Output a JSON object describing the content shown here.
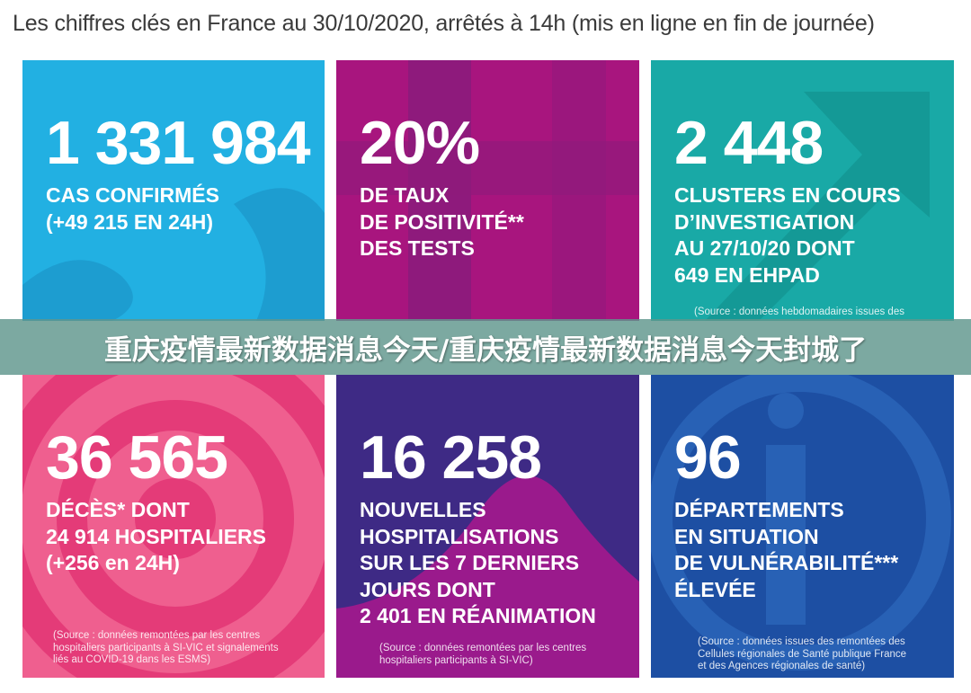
{
  "header": {
    "title": "Les chiffres clés en France au 30/10/2020, arrêtés à 14h (mis en ligne en fin de journée)"
  },
  "tiles": [
    {
      "big": "1 331 984",
      "lines": [
        "CAS CONFIRMÉS",
        "(+49 215 EN 24H)"
      ],
      "source": [],
      "color": "#22b0e2"
    },
    {
      "big": "20%",
      "lines": [
        "DE TAUX",
        "DE POSITIVITÉ**",
        "DES TESTS"
      ],
      "source": [],
      "color": "#a8157e"
    },
    {
      "big": "2 448",
      "lines": [
        "CLUSTERS EN COURS",
        "D’INVESTIGATION",
        "AU 27/10/20 DONT",
        "649 EN EHPAD"
      ],
      "source": [
        "(Source : données hebdomadaires issues des"
      ],
      "color": "#19a9a6"
    },
    {
      "big": "36 565",
      "lines": [
        "DÉCÈS* DONT",
        "24 914 HOSPITALIERS",
        "(+256 en 24H)"
      ],
      "source": [
        "(Source : données remontées par les centres",
        "hospitaliers participants à SI-VIC et signalements",
        "liés au COVID-19 dans les ESMS)"
      ],
      "color": "#ef5f8f"
    },
    {
      "big": "16 258",
      "lines": [
        "NOUVELLES",
        "HOSPITALISATIONS",
        "SUR LES 7 DERNIERS",
        "JOURS DONT",
        "2 401 EN RÉANIMATION"
      ],
      "source": [
        "(Source : données remontées par les centres",
        "hospitaliers participants à SI-VIC)"
      ],
      "color": "#3e2a85"
    },
    {
      "big": "96",
      "lines": [
        "DÉPARTEMENTS",
        "EN SITUATION",
        "DE VULNÉRABILITÉ***",
        "ÉLEVÉE"
      ],
      "source": [
        "(Source : données issues des remontées des",
        "Cellules régionales de Santé publique France",
        "et des Agences régionales de santé)"
      ],
      "color": "#1d4fa3"
    }
  ],
  "banner": {
    "text": "重庆疫情最新数据消息今天/重庆疫情最新数据消息今天封城了"
  }
}
